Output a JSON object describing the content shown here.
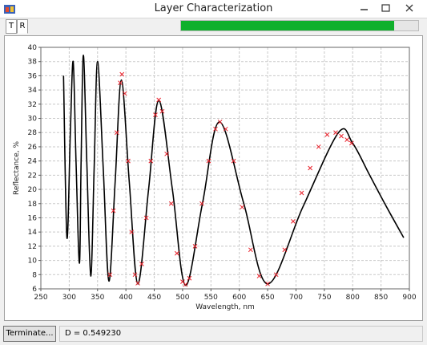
{
  "window": {
    "title": "Layer Characterization"
  },
  "tabs": [
    "T",
    "R"
  ],
  "progress": {
    "value": 90,
    "range": [
      0,
      100
    ],
    "color": "#10b02c"
  },
  "chart_data": {
    "type": "line",
    "x_label": "Wavelength, nm",
    "y_label": "Reflectance, %",
    "xlim": [
      250,
      900
    ],
    "xticks": [
      250,
      300,
      350,
      400,
      450,
      500,
      550,
      600,
      650,
      700,
      750,
      800,
      850,
      900
    ],
    "ylim": [
      6,
      40
    ],
    "yticks": [
      6,
      8,
      10,
      12,
      14,
      16,
      18,
      20,
      22,
      24,
      26,
      28,
      30,
      32,
      34,
      36,
      38,
      40
    ],
    "grid": true,
    "series": [
      {
        "color": "#000000",
        "style": "line",
        "x": [
          290,
          296,
          302,
          307,
          312,
          318,
          321,
          325,
          331,
          338,
          344,
          350,
          360,
          370,
          381,
          392,
          406,
          421,
          440,
          458,
          482,
          505,
          535,
          565,
          608,
          650,
          712,
          775,
          800,
          830,
          860,
          890
        ],
        "values": [
          36,
          13.2,
          28,
          38,
          24,
          9.6,
          24,
          38.9,
          24,
          7.8,
          23,
          38,
          23,
          7.1,
          21,
          35.4,
          21,
          6.7,
          20,
          32.5,
          20,
          6.5,
          18,
          29.5,
          18,
          6.7,
          17.5,
          28,
          26.5,
          22,
          17.5,
          13.2
        ]
      },
      {
        "color": "#e8202a",
        "style": "x",
        "x": [
          372,
          378,
          384,
          390,
          393,
          398,
          404,
          410,
          416,
          421,
          428,
          436,
          444,
          452,
          458,
          464,
          472,
          480,
          490,
          500,
          505,
          512,
          522,
          534,
          546,
          558,
          566,
          576,
          590,
          605,
          620,
          635,
          650,
          665,
          680,
          695,
          710,
          725,
          740,
          755,
          770,
          780,
          790,
          798
        ],
        "values": [
          8,
          17,
          28,
          35,
          36.2,
          33.5,
          24,
          14,
          8,
          6.8,
          9.5,
          16,
          24,
          30.5,
          32.6,
          31,
          25,
          18,
          11,
          7,
          6.6,
          7.5,
          12,
          18,
          24,
          28.5,
          29.5,
          28.5,
          24,
          17.5,
          11.5,
          7.8,
          6.7,
          8,
          11.5,
          15.5,
          19.5,
          23,
          26,
          27.7,
          28,
          27.5,
          27,
          26.5
        ]
      }
    ]
  },
  "status": {
    "button": "Terminate...",
    "text": "D = 0.549230"
  }
}
